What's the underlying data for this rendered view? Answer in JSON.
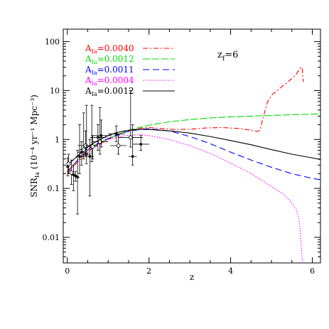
{
  "chart_data": {
    "type": "line",
    "xlabel": "z",
    "ylabel_main": "SNR",
    "ylabel_sub": "Ia",
    "ylabel_units": "(10⁻⁴ yr⁻¹ Mpc⁻³)",
    "xlim": [
      -0.1,
      6.2
    ],
    "ylim": [
      0.003,
      180
    ],
    "yscale": "log",
    "x_ticks": [
      0,
      2,
      4,
      6
    ],
    "y_ticks": [
      0.01,
      0.1,
      1,
      10,
      100
    ],
    "y_tick_labels": [
      "0.01",
      "0.1",
      "1",
      "10",
      "100"
    ],
    "annotation": {
      "main": "z",
      "sub": "f",
      "value": "=6"
    },
    "series": [
      {
        "name": "A_Ia=0.0040",
        "label_main": "A",
        "label_sub": "Ia",
        "label_value": "=0.0040",
        "color": "#ff0000",
        "dash": "7,3,2,3",
        "x": [
          0.0,
          0.3,
          0.6,
          1.0,
          1.4,
          1.8,
          2.0,
          2.2,
          2.6,
          3.0,
          3.4,
          3.8,
          4.2,
          4.5,
          4.65,
          4.72,
          4.78,
          4.9,
          5.0,
          5.2,
          5.4,
          5.6,
          5.7,
          5.75,
          5.78
        ],
        "y": [
          0.21,
          0.38,
          0.65,
          1.0,
          1.45,
          1.7,
          1.75,
          1.7,
          1.6,
          1.62,
          1.72,
          1.75,
          1.68,
          1.55,
          1.45,
          1.55,
          2.5,
          5.8,
          8.0,
          11.0,
          15.0,
          21.0,
          29.0,
          30.0,
          15.0
        ]
      },
      {
        "name": "A_Ia=0.0012",
        "label_main": "A",
        "label_sub": "Ia",
        "label_value": "=0.0012",
        "color": "#00dd00",
        "dash": "10,3",
        "x": [
          0.0,
          0.3,
          0.6,
          1.0,
          1.5,
          2.0,
          2.5,
          3.0,
          3.5,
          4.0,
          4.5,
          5.0,
          5.5,
          6.0,
          6.2
        ],
        "y": [
          0.22,
          0.42,
          0.72,
          1.05,
          1.55,
          1.95,
          2.3,
          2.55,
          2.75,
          2.9,
          3.0,
          3.1,
          3.2,
          3.3,
          3.35
        ]
      },
      {
        "name": "A_Ia=0.0011",
        "label_main": "A",
        "label_sub": "Ia",
        "label_value": "=0.0011",
        "color": "#0000ff",
        "dash": "9,5",
        "x": [
          0.0,
          0.3,
          0.6,
          1.0,
          1.4,
          1.8,
          2.0,
          2.5,
          3.0,
          3.5,
          4.0,
          4.5,
          5.0,
          5.5,
          6.0,
          6.2
        ],
        "y": [
          0.22,
          0.42,
          0.72,
          1.05,
          1.4,
          1.62,
          1.65,
          1.5,
          1.15,
          0.82,
          0.55,
          0.38,
          0.27,
          0.2,
          0.16,
          0.15
        ]
      },
      {
        "name": "A_Ia=0.0004",
        "label_main": "A",
        "label_sub": "Ia",
        "label_value": "=0.0004",
        "color": "#ff00ff",
        "dash": "1.5,2",
        "x": [
          0.0,
          0.3,
          0.6,
          1.0,
          1.4,
          1.8,
          2.0,
          2.5,
          3.0,
          3.5,
          4.0,
          4.5,
          5.0,
          5.3,
          5.5,
          5.6,
          5.65,
          5.7,
          5.72,
          5.74,
          5.76
        ],
        "y": [
          0.22,
          0.42,
          0.7,
          1.0,
          1.2,
          1.25,
          1.2,
          1.0,
          0.75,
          0.52,
          0.33,
          0.2,
          0.11,
          0.075,
          0.05,
          0.038,
          0.028,
          0.016,
          0.009,
          0.005,
          0.0032
        ]
      },
      {
        "name": "A_Ia=0.0012",
        "label_main": "A",
        "label_sub": "Ia",
        "label_value": "=0.0012",
        "color": "#000000",
        "dash": "",
        "x": [
          0.0,
          0.2,
          0.4,
          0.6,
          0.8,
          1.0,
          1.2,
          1.4,
          1.6,
          1.8,
          2.0,
          2.5,
          3.0,
          3.5,
          4.0,
          4.5,
          5.0,
          5.5,
          6.0,
          6.2
        ],
        "y": [
          0.3,
          0.42,
          0.6,
          0.8,
          1.0,
          1.2,
          1.38,
          1.5,
          1.58,
          1.6,
          1.6,
          1.5,
          1.35,
          1.15,
          0.95,
          0.78,
          0.62,
          0.5,
          0.42,
          0.39
        ]
      }
    ],
    "observations": [
      {
        "x": 0.01,
        "y": 0.28,
        "y_low": 0.18,
        "y_high": 0.42,
        "x_err": 0.05,
        "filled": true
      },
      {
        "x": 0.03,
        "y": 0.32,
        "y_low": 0.2,
        "y_high": 0.5,
        "x_err": 0.05,
        "filled": false
      },
      {
        "x": 0.1,
        "y": 0.21,
        "y_low": 0.12,
        "y_high": 0.38,
        "x_err": 0.05,
        "filled": false
      },
      {
        "x": 0.15,
        "y": 0.19,
        "y_low": 0.09,
        "y_high": 0.3,
        "x_err": 0.05,
        "filled": true
      },
      {
        "x": 0.2,
        "y": 0.18,
        "y_low": 0.14,
        "y_high": 0.22,
        "x_err": 0.05,
        "filled": true
      },
      {
        "x": 0.25,
        "y": 0.17,
        "y_low": 0.03,
        "y_high": 0.6,
        "x_err": 0.05,
        "filled": true
      },
      {
        "x": 0.3,
        "y": 0.45,
        "y_low": 0.2,
        "y_high": 2.0,
        "x_err": 0.1,
        "filled": true
      },
      {
        "x": 0.35,
        "y": 0.55,
        "y_low": 0.3,
        "y_high": 0.9,
        "x_err": 0.1,
        "filled": true
      },
      {
        "x": 0.4,
        "y": 0.62,
        "y_low": 0.4,
        "y_high": 3.5,
        "x_err": 0.1,
        "filled": false
      },
      {
        "x": 0.45,
        "y": 0.75,
        "y_low": 0.45,
        "y_high": 1.5,
        "x_err": 0.2,
        "filled": false
      },
      {
        "x": 0.47,
        "y": 0.5,
        "y_low": 0.32,
        "y_high": 5.0,
        "x_err": 0.1,
        "filled": true
      },
      {
        "x": 0.55,
        "y": 0.45,
        "y_low": 0.07,
        "y_high": 1.0,
        "x_err": 0.1,
        "filled": true
      },
      {
        "x": 0.6,
        "y": 0.75,
        "y_low": 0.35,
        "y_high": 5.0,
        "x_err": 0.15,
        "filled": true
      },
      {
        "x": 0.62,
        "y": 0.72,
        "y_low": 0.4,
        "y_high": 1.2,
        "x_err": 0.1,
        "filled": false
      },
      {
        "x": 0.75,
        "y": 1.1,
        "y_low": 0.6,
        "y_high": 2.0,
        "x_err": 0.2,
        "filled": true
      },
      {
        "x": 0.8,
        "y": 0.9,
        "y_low": 0.5,
        "y_high": 4.5,
        "x_err": 0.2,
        "filled": false
      },
      {
        "x": 0.83,
        "y": 1.2,
        "y_low": 0.7,
        "y_high": 2.5,
        "x_err": 0.25,
        "filled": true
      },
      {
        "x": 1.2,
        "y": 1.3,
        "y_low": 0.9,
        "y_high": 1.9,
        "x_err": 0.2,
        "filled": true
      },
      {
        "x": 1.25,
        "y": 0.75,
        "y_low": 0.5,
        "y_high": 1.2,
        "x_err": 0.2,
        "filled": false
      },
      {
        "x": 1.55,
        "y": 1.1,
        "y_low": 0.7,
        "y_high": 10.0,
        "x_err": 0.3,
        "filled": false
      },
      {
        "x": 1.6,
        "y": 0.45,
        "y_low": 0.3,
        "y_high": 2.0,
        "x_err": 0.1,
        "filled": true
      },
      {
        "x": 1.8,
        "y": 0.8,
        "y_low": 0.6,
        "y_high": 1.2,
        "x_err": 0.2,
        "filled": true
      }
    ]
  }
}
